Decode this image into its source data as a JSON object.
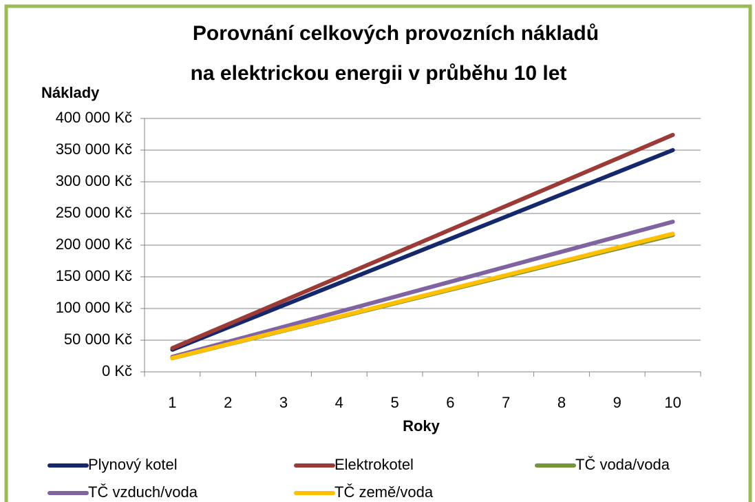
{
  "chart_data": {
    "type": "line",
    "title": [
      "Porovnání celkových provozních nákladů",
      "na elektrickou energii v průběhu 10 let"
    ],
    "y_label": "Náklady",
    "x_label": "Roky",
    "categories": [
      "1",
      "2",
      "3",
      "4",
      "5",
      "6",
      "7",
      "8",
      "9",
      "10"
    ],
    "series": [
      {
        "name": "Plynový kotel",
        "color": "#14286b",
        "values": [
          35000,
          70000,
          105000,
          140000,
          175000,
          210000,
          245000,
          280000,
          315000,
          350000
        ]
      },
      {
        "name": "Elektrokotel",
        "color": "#9b3b38",
        "values": [
          37400,
          74800,
          112200,
          149600,
          187000,
          224400,
          261800,
          299200,
          336600,
          374000
        ]
      },
      {
        "name": "TČ voda/voda",
        "color": "#77933c",
        "values": [
          21600,
          43200,
          64800,
          86400,
          108000,
          129600,
          151200,
          172800,
          194400,
          216000
        ]
      },
      {
        "name": "TČ vzduch/voda",
        "color": "#8064a2",
        "values": [
          23700,
          47400,
          71100,
          94800,
          118500,
          142200,
          165900,
          189600,
          213300,
          237000
        ]
      },
      {
        "name": "TČ země/voda",
        "color": "#ffc000",
        "values": [
          21800,
          43600,
          65400,
          87200,
          109000,
          130800,
          152600,
          174400,
          196200,
          218000
        ]
      }
    ],
    "ylim": [
      0,
      400000
    ],
    "yticks": [
      {
        "value": 0,
        "label": "0 Kč"
      },
      {
        "value": 50000,
        "label": "50 000 Kč"
      },
      {
        "value": 100000,
        "label": "100 000 Kč"
      },
      {
        "value": 150000,
        "label": "150 000 Kč"
      },
      {
        "value": 200000,
        "label": "200 000 Kč"
      },
      {
        "value": 250000,
        "label": "250 000 Kč"
      },
      {
        "value": 300000,
        "label": "300 000 Kč"
      },
      {
        "value": 350000,
        "label": "350 000 Kč"
      },
      {
        "value": 400000,
        "label": "400 000 Kč"
      }
    ],
    "grid": true,
    "legend": "bottom"
  }
}
